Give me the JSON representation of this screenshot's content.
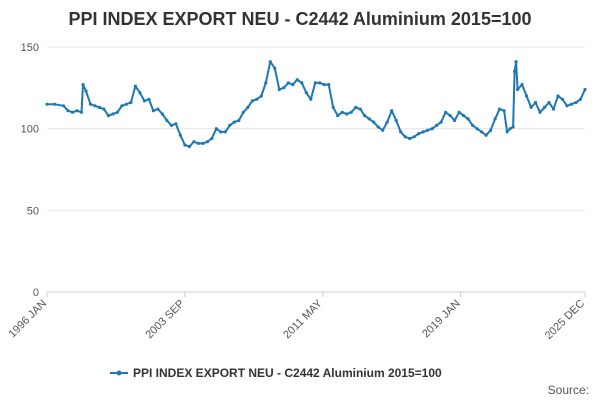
{
  "chart_data": {
    "type": "line",
    "title": "PPI INDEX EXPORT NEU - C2442 Aluminium 2015=100",
    "xlabel": "",
    "ylabel": "",
    "ylim": [
      0,
      150
    ],
    "yticks": [
      0,
      50,
      100,
      150
    ],
    "x_range": [
      "1996 JAN",
      "2025 DEC"
    ],
    "x_tick_labels": [
      "1996 JAN",
      "2003 SEP",
      "2011 MAY",
      "2019 JAN",
      "2025 DEC"
    ],
    "grid": true,
    "legend_position": "bottom",
    "source_label": "Source:",
    "colors": {
      "line": "#1f77b4",
      "grid": "#e6e6e6",
      "axis": "#cccccc"
    },
    "series": [
      {
        "name": "PPI INDEX EXPORT NEU - C2442 Aluminium 2015=100",
        "points": [
          [
            "1996-01",
            115
          ],
          [
            "1996-06",
            115
          ],
          [
            "1996-12",
            114
          ],
          [
            "1997-03",
            111
          ],
          [
            "1997-06",
            110
          ],
          [
            "1997-09",
            111
          ],
          [
            "1997-12",
            110
          ],
          [
            "1998-01",
            127
          ],
          [
            "1998-03",
            123
          ],
          [
            "1998-06",
            115
          ],
          [
            "1998-09",
            114
          ],
          [
            "1998-12",
            113
          ],
          [
            "1999-03",
            112
          ],
          [
            "1999-06",
            108
          ],
          [
            "1999-09",
            109
          ],
          [
            "1999-12",
            110
          ],
          [
            "2000-03",
            114
          ],
          [
            "2000-06",
            115
          ],
          [
            "2000-09",
            116
          ],
          [
            "2000-12",
            126
          ],
          [
            "2001-03",
            122
          ],
          [
            "2001-06",
            117
          ],
          [
            "2001-09",
            118
          ],
          [
            "2001-12",
            111
          ],
          [
            "2002-03",
            112
          ],
          [
            "2002-06",
            109
          ],
          [
            "2002-09",
            105
          ],
          [
            "2002-12",
            102
          ],
          [
            "2003-03",
            103
          ],
          [
            "2003-06",
            96
          ],
          [
            "2003-09",
            90
          ],
          [
            "2003-12",
            89
          ],
          [
            "2004-03",
            92
          ],
          [
            "2004-06",
            91
          ],
          [
            "2004-09",
            91
          ],
          [
            "2004-12",
            92
          ],
          [
            "2005-03",
            94
          ],
          [
            "2005-06",
            100
          ],
          [
            "2005-09",
            98
          ],
          [
            "2005-12",
            98
          ],
          [
            "2006-03",
            102
          ],
          [
            "2006-06",
            104
          ],
          [
            "2006-09",
            105
          ],
          [
            "2006-12",
            110
          ],
          [
            "2007-03",
            113
          ],
          [
            "2007-06",
            117
          ],
          [
            "2007-09",
            118
          ],
          [
            "2007-12",
            120
          ],
          [
            "2008-03",
            128
          ],
          [
            "2008-06",
            141
          ],
          [
            "2008-09",
            137
          ],
          [
            "2008-12",
            124
          ],
          [
            "2009-03",
            125
          ],
          [
            "2009-06",
            128
          ],
          [
            "2009-09",
            127
          ],
          [
            "2009-12",
            130
          ],
          [
            "2010-03",
            128
          ],
          [
            "2010-06",
            122
          ],
          [
            "2010-09",
            118
          ],
          [
            "2010-12",
            128
          ],
          [
            "2011-03",
            128
          ],
          [
            "2011-06",
            127
          ],
          [
            "2011-09",
            127
          ],
          [
            "2011-12",
            113
          ],
          [
            "2012-03",
            108
          ],
          [
            "2012-06",
            110
          ],
          [
            "2012-09",
            109
          ],
          [
            "2012-12",
            110
          ],
          [
            "2013-03",
            113
          ],
          [
            "2013-06",
            112
          ],
          [
            "2013-09",
            108
          ],
          [
            "2013-12",
            106
          ],
          [
            "2014-03",
            104
          ],
          [
            "2014-06",
            101
          ],
          [
            "2014-09",
            99
          ],
          [
            "2014-12",
            104
          ],
          [
            "2015-03",
            111
          ],
          [
            "2015-06",
            105
          ],
          [
            "2015-09",
            98
          ],
          [
            "2015-12",
            95
          ],
          [
            "2016-03",
            94
          ],
          [
            "2016-06",
            95
          ],
          [
            "2016-09",
            97
          ],
          [
            "2016-12",
            98
          ],
          [
            "2017-03",
            99
          ],
          [
            "2017-06",
            100
          ],
          [
            "2017-09",
            102
          ],
          [
            "2017-12",
            104
          ],
          [
            "2018-03",
            110
          ],
          [
            "2018-06",
            108
          ],
          [
            "2018-09",
            105
          ],
          [
            "2018-12",
            110
          ],
          [
            "2019-03",
            108
          ],
          [
            "2019-06",
            106
          ],
          [
            "2019-09",
            102
          ],
          [
            "2019-12",
            100
          ],
          [
            "2020-03",
            98
          ],
          [
            "2020-06",
            96
          ],
          [
            "2020-09",
            99
          ],
          [
            "2020-12",
            106
          ],
          [
            "2021-03",
            112
          ],
          [
            "2021-06",
            111
          ],
          [
            "2021-08",
            98
          ],
          [
            "2021-10",
            100
          ],
          [
            "2021-12",
            101
          ],
          [
            "2022-01",
            135
          ],
          [
            "2022-02",
            141
          ],
          [
            "2022-03",
            124
          ],
          [
            "2022-06",
            127
          ],
          [
            "2022-09",
            120
          ],
          [
            "2022-12",
            113
          ],
          [
            "2023-03",
            116
          ],
          [
            "2023-06",
            110
          ],
          [
            "2023-09",
            113
          ],
          [
            "2023-12",
            116
          ],
          [
            "2024-03",
            112
          ],
          [
            "2024-06",
            120
          ],
          [
            "2024-09",
            118
          ],
          [
            "2024-12",
            114
          ],
          [
            "2025-03",
            115
          ],
          [
            "2025-06",
            116
          ],
          [
            "2025-09",
            118
          ],
          [
            "2025-12",
            124
          ]
        ]
      }
    ]
  }
}
